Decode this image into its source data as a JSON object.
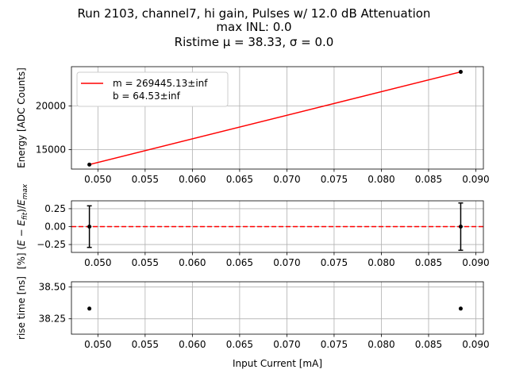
{
  "title_lines": [
    "Run 2103, channel7, hi gain, Pulses w/ 12.0 dB Attenuation",
    "max INL: 0.0",
    "Ristime μ = 38.33, σ = 0.0"
  ],
  "colors": {
    "fit": "#ff0000",
    "points": "#000000",
    "grid": "#b0b0b0"
  },
  "chart_data": [
    {
      "type": "line",
      "name": "energy",
      "ylabel": "Energy [ADC Counts]",
      "xlim": [
        0.0472,
        0.0908
      ],
      "ylim": [
        12780,
        24480
      ],
      "xticks": [
        0.05,
        0.055,
        0.06,
        0.065,
        0.07,
        0.075,
        0.08,
        0.085,
        0.09
      ],
      "xtick_labels": [
        "0.050",
        "0.055",
        "0.060",
        "0.065",
        "0.070",
        "0.075",
        "0.080",
        "0.085",
        "0.090"
      ],
      "yticks": [
        15000,
        20000
      ],
      "ytick_labels": [
        "15000",
        "20000"
      ],
      "grid": true,
      "legend": {
        "placement": "upper-left",
        "entries": [
          "m = 269445.13±inf",
          "b = 64.53±inf"
        ]
      },
      "points": {
        "x": [
          0.0491,
          0.0884
        ],
        "y": [
          13295,
          23885
        ]
      },
      "fit_line": {
        "x": [
          0.0491,
          0.0884
        ],
        "y": [
          13295,
          23885
        ]
      }
    },
    {
      "type": "scatter",
      "name": "residual",
      "ylabel": "[%] (E − E_fit)/E_max",
      "xlim": [
        0.0472,
        0.0908
      ],
      "ylim": [
        -0.36,
        0.36
      ],
      "xticks": [
        0.05,
        0.055,
        0.06,
        0.065,
        0.07,
        0.075,
        0.08,
        0.085,
        0.09
      ],
      "xtick_labels": [
        "0.050",
        "0.055",
        "0.060",
        "0.065",
        "0.070",
        "0.075",
        "0.080",
        "0.085",
        "0.090"
      ],
      "yticks": [
        -0.25,
        0.0,
        0.25
      ],
      "ytick_labels": [
        "−0.25",
        "0.00",
        "0.25"
      ],
      "grid": true,
      "points": {
        "x": [
          0.0491,
          0.0884
        ],
        "y": [
          0.0,
          0.0
        ],
        "yerr": [
          0.29,
          0.33
        ]
      },
      "reference_line": {
        "y": 0.0,
        "style": "dashed"
      }
    },
    {
      "type": "scatter",
      "name": "risetime",
      "ylabel": "rise time [ns]",
      "xlabel": "Input Current [mA]",
      "xlim": [
        0.0472,
        0.0908
      ],
      "ylim": [
        38.13,
        38.54
      ],
      "xticks": [
        0.05,
        0.055,
        0.06,
        0.065,
        0.07,
        0.075,
        0.08,
        0.085,
        0.09
      ],
      "xtick_labels": [
        "0.050",
        "0.055",
        "0.060",
        "0.065",
        "0.070",
        "0.075",
        "0.080",
        "0.085",
        "0.090"
      ],
      "yticks": [
        38.25,
        38.5
      ],
      "ytick_labels": [
        "38.25",
        "38.50"
      ],
      "grid": true,
      "points": {
        "x": [
          0.0491,
          0.0884
        ],
        "y": [
          38.33,
          38.33
        ]
      }
    }
  ]
}
